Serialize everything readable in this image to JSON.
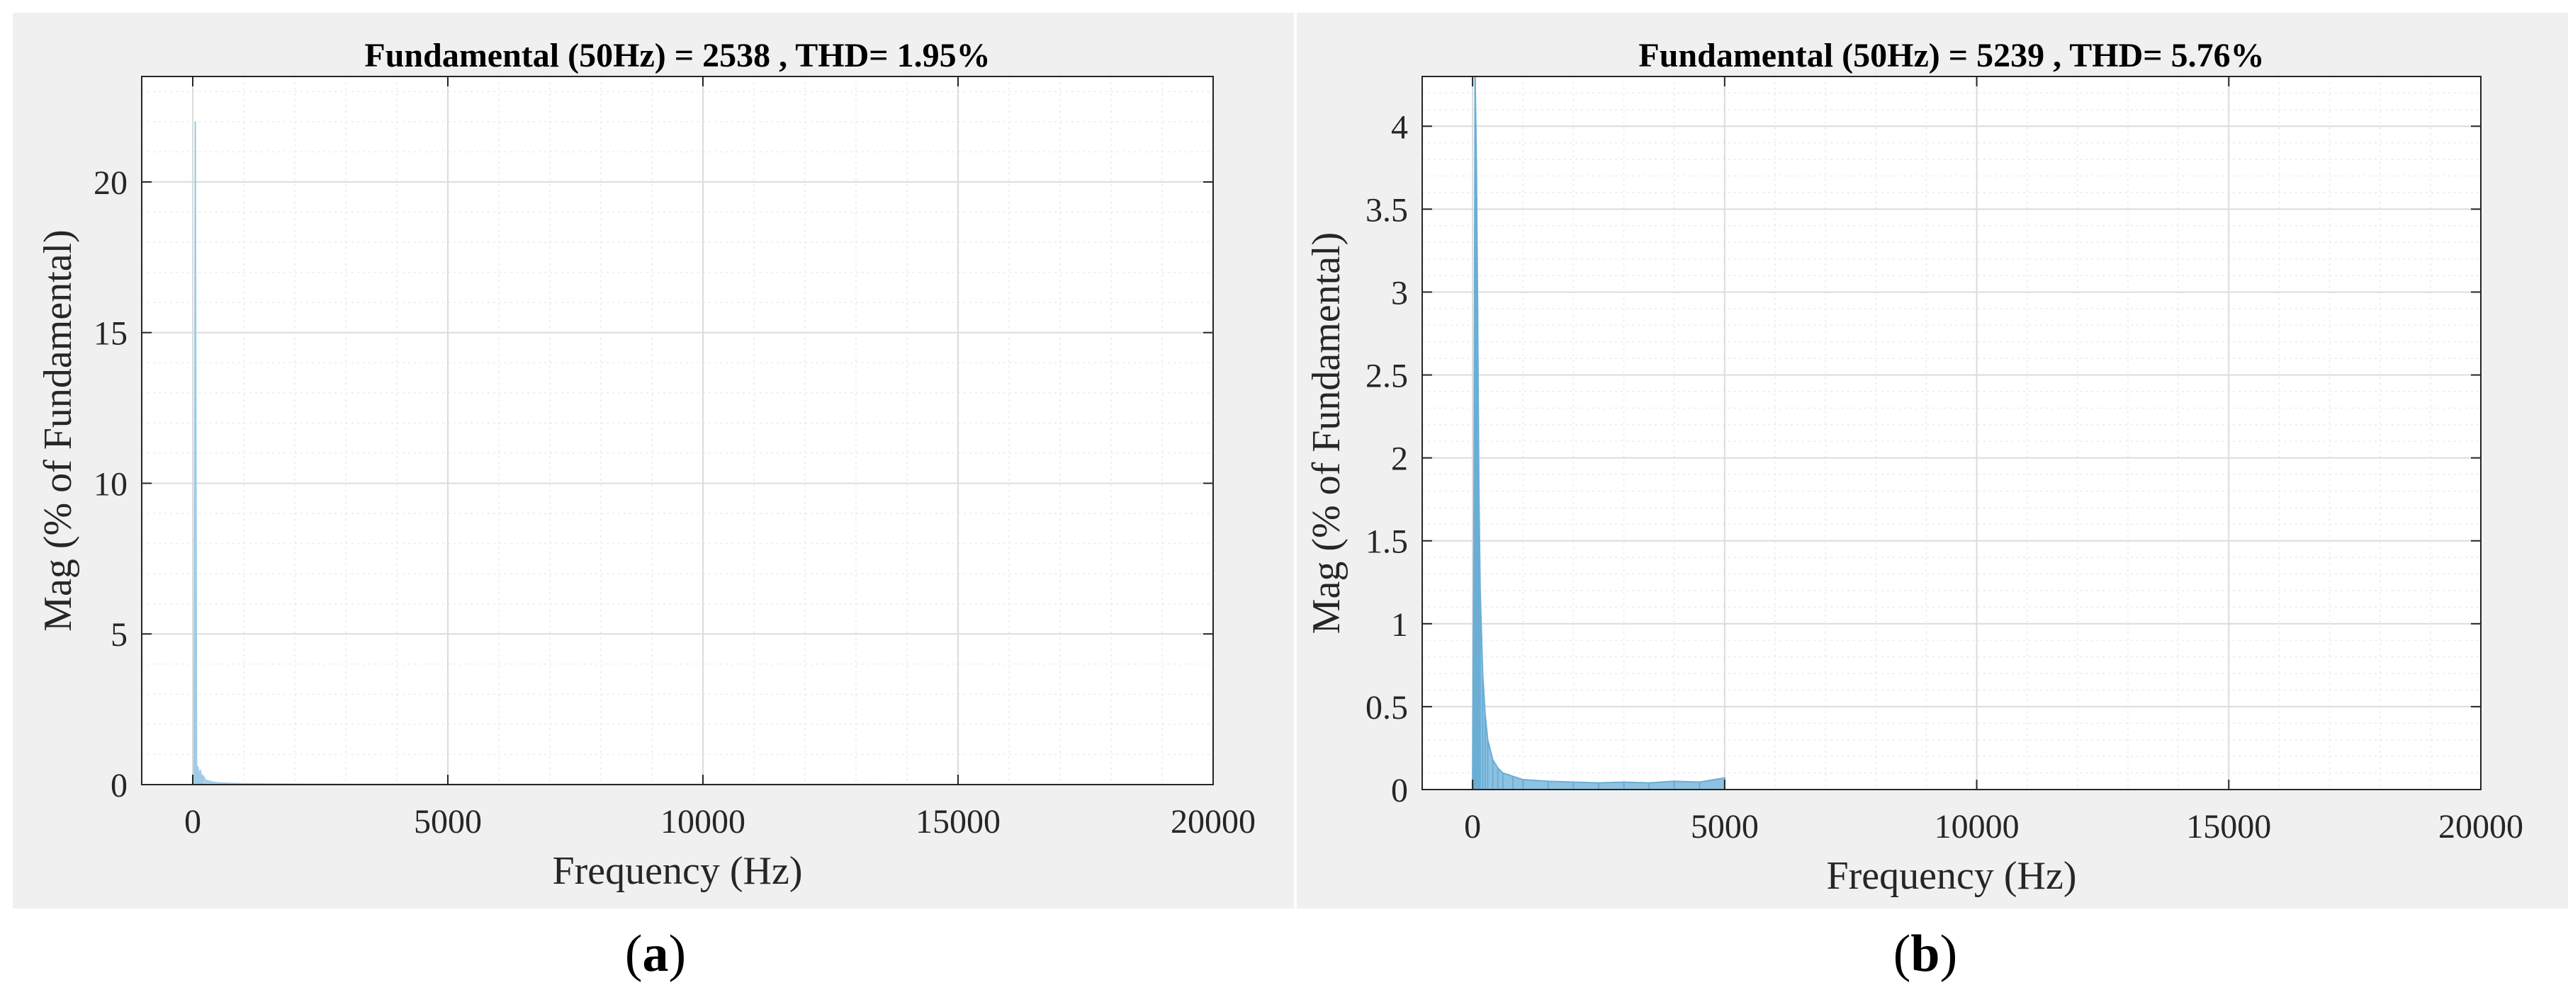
{
  "chart_data": [
    {
      "type": "area",
      "title": "Fundamental (50Hz) = 2538 , THD= 1.95%",
      "xlabel": "Frequency (Hz)",
      "ylabel": "Mag (% of Fundamental)",
      "xlim": [
        -1000,
        20000
      ],
      "ylim": [
        0,
        23.5
      ],
      "xticks": [
        0,
        5000,
        10000,
        15000,
        20000
      ],
      "yticks": [
        0,
        5,
        10,
        15,
        20
      ],
      "grid": true,
      "series_color": "#9fcbe6",
      "x": [
        0,
        25,
        50,
        75,
        100,
        125,
        150,
        175,
        200,
        250,
        300,
        350,
        400,
        500,
        700,
        1000,
        1500,
        2000,
        3000,
        5000,
        8000,
        12000,
        16000,
        19000
      ],
      "y": [
        0,
        0.2,
        22.0,
        0.3,
        0.6,
        0.35,
        0.45,
        0.25,
        0.3,
        0.15,
        0.12,
        0.1,
        0.08,
        0.06,
        0.04,
        0.03,
        0.02,
        0.015,
        0.01,
        0.01,
        0.005,
        0.005,
        0.003,
        0.003
      ],
      "caption": "a"
    },
    {
      "type": "area",
      "title": "Fundamental (50Hz) = 5239 , THD= 5.76%",
      "xlabel": "Frequency (Hz)",
      "ylabel": "Mag (% of Fundamental)",
      "xlim": [
        -1000,
        20000
      ],
      "ylim": [
        0,
        4.3
      ],
      "xticks": [
        0,
        5000,
        10000,
        15000,
        20000
      ],
      "yticks": [
        0,
        0.5,
        1,
        1.5,
        2,
        2.5,
        3,
        3.5,
        4
      ],
      "grid": true,
      "series_color": "#6aaed6",
      "x": [
        0,
        25,
        50,
        75,
        100,
        125,
        150,
        200,
        250,
        300,
        400,
        500,
        600,
        800,
        1000,
        1500,
        2000,
        2500,
        3000,
        3500,
        4000,
        4500,
        5000
      ],
      "y": [
        0,
        1.5,
        4.3,
        3.8,
        2.9,
        1.8,
        1.2,
        0.7,
        0.45,
        0.3,
        0.18,
        0.13,
        0.1,
        0.08,
        0.06,
        0.05,
        0.045,
        0.04,
        0.045,
        0.04,
        0.05,
        0.045,
        0.07
      ],
      "caption": "b"
    }
  ]
}
